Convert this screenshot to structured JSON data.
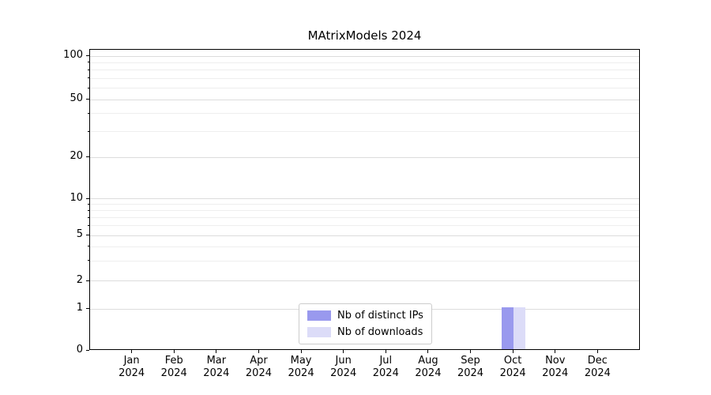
{
  "chart_data": {
    "type": "bar",
    "title": "MAtrixModels 2024",
    "categories": [
      "Jan",
      "Feb",
      "Mar",
      "Apr",
      "May",
      "Jun",
      "Jul",
      "Aug",
      "Sep",
      "Oct",
      "Nov",
      "Dec"
    ],
    "year_label": "2024",
    "series": [
      {
        "name": "Nb of distinct IPs",
        "color": "#9999ee",
        "values": [
          0,
          0,
          0,
          0,
          0,
          0,
          0,
          0,
          0,
          1,
          0,
          0
        ]
      },
      {
        "name": "Nb of downloads",
        "color": "#dcdcf8",
        "values": [
          0,
          0,
          0,
          0,
          0,
          0,
          0,
          0,
          0,
          1,
          0,
          0
        ]
      }
    ],
    "y_ticks": [
      0,
      1,
      2,
      5,
      10,
      20,
      50,
      100
    ],
    "y_minor_ticks": [
      3,
      4,
      6,
      7,
      8,
      9,
      30,
      40,
      60,
      70,
      80,
      90
    ],
    "yscale": "symlog",
    "ylim": [
      0,
      110
    ],
    "grid": true,
    "legend_position": "lower center"
  },
  "legend": {
    "items": [
      {
        "label": "Nb of distinct IPs"
      },
      {
        "label": "Nb of downloads"
      }
    ]
  }
}
